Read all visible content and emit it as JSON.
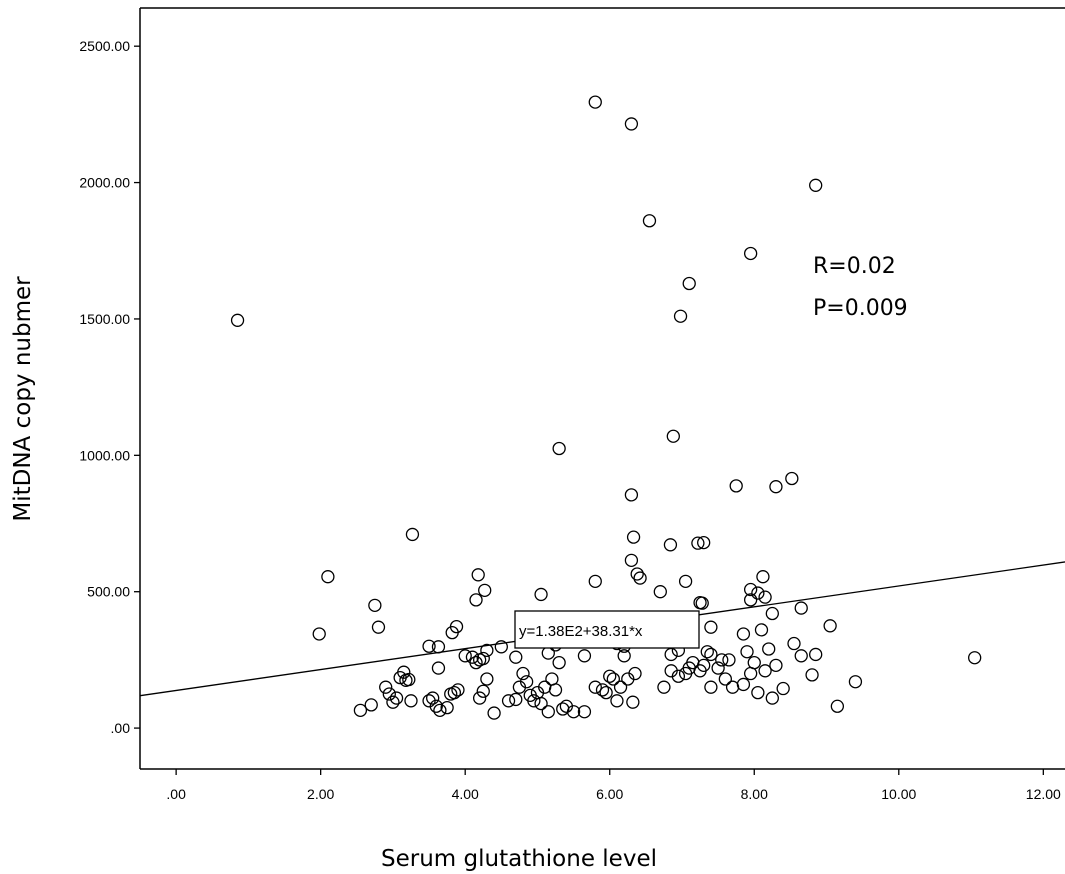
{
  "chart_data": {
    "type": "scatter",
    "title": "",
    "xlabel": "Serum glutathione level",
    "ylabel": "MitDNA copy nubmer",
    "xlim": [
      -0.5,
      12.3
    ],
    "ylim": [
      -150,
      2640
    ],
    "x_ticks": [
      0,
      2,
      4,
      6,
      8,
      10,
      12
    ],
    "x_tick_labels": [
      ".00",
      "2.00",
      "4.00",
      "6.00",
      "8.00",
      "10.00",
      "12.00"
    ],
    "y_ticks": [
      0,
      500,
      1000,
      1500,
      2000,
      2500
    ],
    "y_tick_labels": [
      ".00",
      "500.00",
      "1000.00",
      "1500.00",
      "2000.00",
      "2500.00"
    ],
    "grid": false,
    "fit_line": {
      "intercept": 138,
      "slope": 38.31,
      "label": "y=1.38E2+38.31*x"
    },
    "annotations": [
      "R=0.02",
      "P=0.009"
    ],
    "points": [
      [
        0.85,
        1495
      ],
      [
        5.8,
        2295
      ],
      [
        6.3,
        2215
      ],
      [
        8.85,
        1990
      ],
      [
        6.55,
        1860
      ],
      [
        7.95,
        1740
      ],
      [
        7.1,
        1630
      ],
      [
        6.98,
        1510
      ],
      [
        6.88,
        1070
      ],
      [
        5.3,
        1025
      ],
      [
        7.75,
        888
      ],
      [
        8.52,
        915
      ],
      [
        8.3,
        885
      ],
      [
        6.3,
        855
      ],
      [
        3.27,
        710
      ],
      [
        6.33,
        700
      ],
      [
        7.22,
        678
      ],
      [
        7.3,
        680
      ],
      [
        6.84,
        672
      ],
      [
        6.3,
        615
      ],
      [
        2.1,
        555
      ],
      [
        4.18,
        562
      ],
      [
        8.12,
        555
      ],
      [
        7.05,
        538
      ],
      [
        5.8,
        538
      ],
      [
        6.38,
        565
      ],
      [
        6.42,
        550
      ],
      [
        8.65,
        440
      ],
      [
        4.27,
        505
      ],
      [
        5.05,
        490
      ],
      [
        6.7,
        500
      ],
      [
        7.25,
        460
      ],
      [
        7.28,
        458
      ],
      [
        7.95,
        508
      ],
      [
        8.05,
        495
      ],
      [
        2.75,
        450
      ],
      [
        4.15,
        470
      ],
      [
        7.95,
        470
      ],
      [
        8.15,
        480
      ],
      [
        2.8,
        370
      ],
      [
        1.98,
        345
      ],
      [
        3.82,
        350
      ],
      [
        3.88,
        372
      ],
      [
        4.5,
        298
      ],
      [
        5.25,
        305
      ],
      [
        7.4,
        370
      ],
      [
        7.85,
        345
      ],
      [
        8.1,
        360
      ],
      [
        8.55,
        310
      ],
      [
        9.05,
        375
      ],
      [
        3.5,
        300
      ],
      [
        3.63,
        298
      ],
      [
        6.0,
        320
      ],
      [
        6.1,
        310
      ],
      [
        6.2,
        300
      ],
      [
        8.25,
        420
      ],
      [
        4.0,
        265
      ],
      [
        4.1,
        260
      ],
      [
        4.2,
        250
      ],
      [
        4.25,
        255
      ],
      [
        4.3,
        285
      ],
      [
        4.15,
        240
      ],
      [
        4.7,
        260
      ],
      [
        5.15,
        275
      ],
      [
        5.65,
        265
      ],
      [
        6.2,
        265
      ],
      [
        6.85,
        270
      ],
      [
        6.95,
        285
      ],
      [
        7.4,
        270
      ],
      [
        7.55,
        250
      ],
      [
        7.9,
        280
      ],
      [
        8.2,
        290
      ],
      [
        8.65,
        265
      ],
      [
        8.85,
        270
      ],
      [
        11.05,
        258
      ],
      [
        3.63,
        220
      ],
      [
        3.15,
        205
      ],
      [
        3.18,
        175
      ],
      [
        3.22,
        178
      ],
      [
        3.1,
        185
      ],
      [
        2.9,
        150
      ],
      [
        2.95,
        125
      ],
      [
        3.05,
        110
      ],
      [
        3.25,
        100
      ],
      [
        3.5,
        100
      ],
      [
        3.55,
        110
      ],
      [
        3.6,
        80
      ],
      [
        3.65,
        65
      ],
      [
        3.75,
        75
      ],
      [
        3.8,
        125
      ],
      [
        3.85,
        130
      ],
      [
        3.9,
        140
      ],
      [
        4.3,
        180
      ],
      [
        4.25,
        135
      ],
      [
        4.2,
        110
      ],
      [
        4.4,
        55
      ],
      [
        4.6,
        100
      ],
      [
        4.7,
        105
      ],
      [
        4.75,
        150
      ],
      [
        4.8,
        200
      ],
      [
        4.85,
        170
      ],
      [
        4.9,
        120
      ],
      [
        4.95,
        100
      ],
      [
        5.0,
        130
      ],
      [
        5.05,
        90
      ],
      [
        5.1,
        150
      ],
      [
        5.15,
        60
      ],
      [
        5.2,
        180
      ],
      [
        5.25,
        140
      ],
      [
        5.3,
        240
      ],
      [
        5.35,
        70
      ],
      [
        5.4,
        80
      ],
      [
        5.65,
        60
      ],
      [
        5.8,
        150
      ],
      [
        5.9,
        140
      ],
      [
        5.95,
        130
      ],
      [
        6.0,
        190
      ],
      [
        6.05,
        180
      ],
      [
        6.1,
        100
      ],
      [
        6.15,
        150
      ],
      [
        6.25,
        180
      ],
      [
        6.32,
        95
      ],
      [
        6.35,
        200
      ],
      [
        6.75,
        150
      ],
      [
        6.85,
        210
      ],
      [
        6.95,
        190
      ],
      [
        7.05,
        200
      ],
      [
        7.1,
        220
      ],
      [
        7.15,
        240
      ],
      [
        7.25,
        210
      ],
      [
        7.3,
        230
      ],
      [
        7.35,
        280
      ],
      [
        7.4,
        150
      ],
      [
        7.5,
        220
      ],
      [
        7.6,
        180
      ],
      [
        7.65,
        250
      ],
      [
        7.7,
        150
      ],
      [
        7.85,
        160
      ],
      [
        7.95,
        200
      ],
      [
        8.0,
        240
      ],
      [
        8.05,
        130
      ],
      [
        8.15,
        210
      ],
      [
        8.25,
        110
      ],
      [
        8.3,
        230
      ],
      [
        8.4,
        145
      ],
      [
        8.8,
        195
      ],
      [
        9.15,
        80
      ],
      [
        9.4,
        170
      ],
      [
        2.55,
        65
      ],
      [
        2.7,
        85
      ],
      [
        3.0,
        95
      ],
      [
        5.5,
        60
      ]
    ]
  }
}
